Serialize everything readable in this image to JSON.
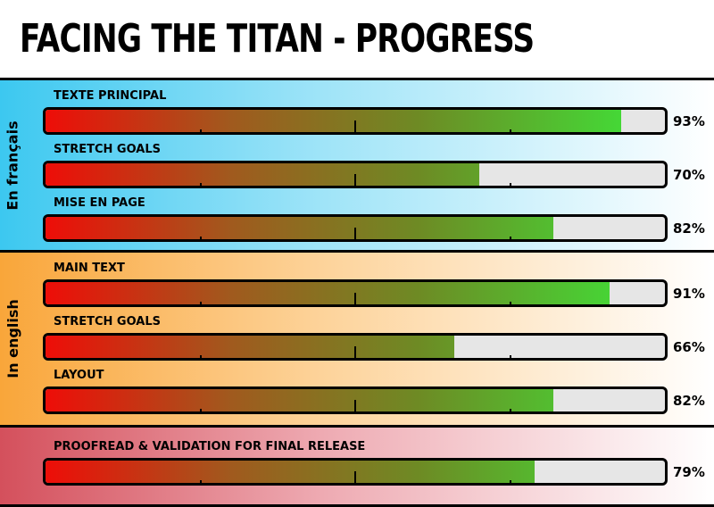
{
  "title": "FACING THE TITAN - PROGRESS",
  "sections": [
    {
      "label": "En français",
      "color": "#3cc8f0",
      "rows": [
        {
          "label": "TEXTE PRINCIPAL",
          "value": 93,
          "pct_text": "93%"
        },
        {
          "label": "STRETCH GOALS",
          "value": 70,
          "pct_text": "70%"
        },
        {
          "label": "MISE EN PAGE",
          "value": 82,
          "pct_text": "82%"
        }
      ]
    },
    {
      "label": "In english",
      "color": "#f9a63a",
      "rows": [
        {
          "label": "MAIN TEXT",
          "value": 91,
          "pct_text": "91%"
        },
        {
          "label": "STRETCH GOALS",
          "value": 66,
          "pct_text": "66%"
        },
        {
          "label": "LAYOUT",
          "value": 82,
          "pct_text": "82%"
        }
      ]
    },
    {
      "label": "",
      "color": "#d4505c",
      "rows": [
        {
          "label": "PROOFREAD & VALIDATION FOR FINAL RELEASE",
          "value": 79,
          "pct_text": "79%"
        }
      ]
    }
  ],
  "chart_data": {
    "type": "bar",
    "title": "FACING THE TITAN - PROGRESS",
    "xlim": [
      0,
      100
    ],
    "grid": false,
    "series": [
      {
        "name": "En français",
        "categories": [
          "TEXTE PRINCIPAL",
          "STRETCH GOALS",
          "MISE EN PAGE"
        ],
        "values": [
          93,
          70,
          82
        ]
      },
      {
        "name": "In english",
        "categories": [
          "MAIN TEXT",
          "STRETCH GOALS",
          "LAYOUT"
        ],
        "values": [
          91,
          66,
          82
        ]
      },
      {
        "name": "",
        "categories": [
          "PROOFREAD & VALIDATION FOR FINAL RELEASE"
        ],
        "values": [
          79
        ]
      }
    ]
  }
}
